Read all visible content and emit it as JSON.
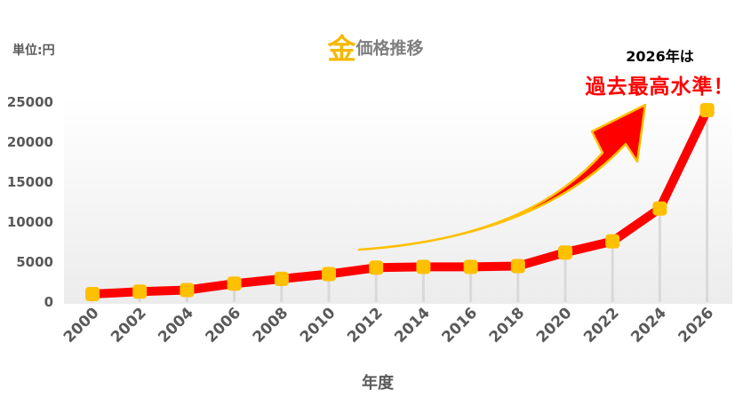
{
  "title": {
    "accent": "金",
    "rest": "価格推移"
  },
  "unit_label": "単位:円",
  "callout": {
    "line1": "2026年は",
    "line2": "過去最高水準！"
  },
  "colors": {
    "line": "#ff0000",
    "marker": "#ffc000",
    "title_accent": "#f5b800",
    "arrow": "#ff0000",
    "arrow_outline": "#ffc000",
    "droplines": "#d9d9d9"
  },
  "chart_data": {
    "type": "line",
    "xlabel": "年度",
    "ylabel": "",
    "ylim": [
      0,
      25000
    ],
    "yticks": [
      0,
      5000,
      10000,
      15000,
      20000,
      25000
    ],
    "grid": false,
    "categories": [
      "2000",
      "2002",
      "2004",
      "2006",
      "2008",
      "2010",
      "2012",
      "2014",
      "2016",
      "2018",
      "2020",
      "2022",
      "2024",
      "2026"
    ],
    "series": [
      {
        "values": [
          1000,
          1300,
          1500,
          2300,
          2900,
          3500,
          4300,
          4400,
          4400,
          4500,
          6200,
          7600,
          11700,
          24000
        ]
      }
    ]
  }
}
